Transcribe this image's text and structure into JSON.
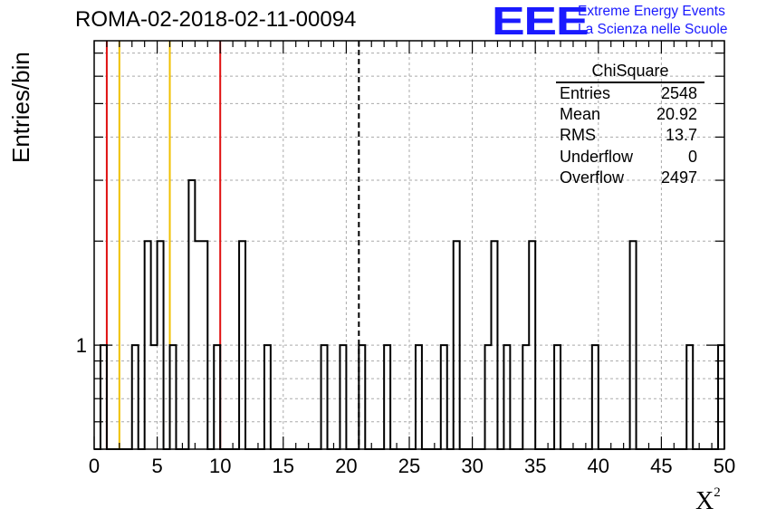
{
  "header": {
    "title": "ROMA-02-2018-02-11-00094",
    "logo_text": "EEE",
    "logo_line1": "Extreme Energy Events",
    "logo_line2": "La Scienza nelle Scuole"
  },
  "colors": {
    "histogram": "#000000",
    "red_line": "#e01010",
    "yellow_line": "#f0c000",
    "grid": "#aaaaaa",
    "logo": "#1a1aff"
  },
  "stats_box": {
    "title": "ChiSquare",
    "rows": [
      {
        "key": "Entries",
        "value": "2548"
      },
      {
        "key": "Mean",
        "value": "20.92"
      },
      {
        "key": "RMS",
        "value": "13.7"
      },
      {
        "key": "Underflow",
        "value": "0"
      },
      {
        "key": "Overflow",
        "value": "2497"
      }
    ]
  },
  "chart_data": {
    "type": "histogram",
    "xlabel_main": "X",
    "xlabel_sup": "2",
    "ylabel": "Entries/bin",
    "xlim": [
      0,
      50
    ],
    "ylog": true,
    "ylim": [
      0.5,
      7.6
    ],
    "x_ticks": [
      "0",
      "5",
      "10",
      "15",
      "20",
      "25",
      "30",
      "35",
      "40",
      "45",
      "50"
    ],
    "y_tick_labels": [
      {
        "value": 1,
        "label": "1"
      }
    ],
    "grid": true,
    "bin_width": 0.5,
    "bins": [
      {
        "x": 0.5,
        "count": 1
      },
      {
        "x": 3.0,
        "count": 1
      },
      {
        "x": 4.0,
        "count": 2
      },
      {
        "x": 4.5,
        "count": 1
      },
      {
        "x": 5.0,
        "count": 2
      },
      {
        "x": 6.0,
        "count": 1
      },
      {
        "x": 7.5,
        "count": 3
      },
      {
        "x": 8.0,
        "count": 2
      },
      {
        "x": 8.5,
        "count": 2
      },
      {
        "x": 9.5,
        "count": 1
      },
      {
        "x": 11.5,
        "count": 2
      },
      {
        "x": 13.5,
        "count": 1
      },
      {
        "x": 18.0,
        "count": 1
      },
      {
        "x": 19.5,
        "count": 1
      },
      {
        "x": 21.0,
        "count": 1
      },
      {
        "x": 23.0,
        "count": 1
      },
      {
        "x": 25.5,
        "count": 1
      },
      {
        "x": 27.5,
        "count": 1
      },
      {
        "x": 28.5,
        "count": 2
      },
      {
        "x": 31.0,
        "count": 1
      },
      {
        "x": 31.5,
        "count": 2
      },
      {
        "x": 32.5,
        "count": 1
      },
      {
        "x": 34.0,
        "count": 1
      },
      {
        "x": 34.5,
        "count": 2
      },
      {
        "x": 36.5,
        "count": 1
      },
      {
        "x": 39.5,
        "count": 1
      },
      {
        "x": 42.5,
        "count": 2
      },
      {
        "x": 47.0,
        "count": 1
      },
      {
        "x": 49.5,
        "count": 1
      }
    ],
    "vertical_lines": [
      {
        "x": 1.0,
        "style": "solid",
        "color": "red"
      },
      {
        "x": 2.0,
        "style": "solid",
        "color": "yellow"
      },
      {
        "x": 6.0,
        "style": "solid",
        "color": "yellow"
      },
      {
        "x": 10.0,
        "style": "solid",
        "color": "red"
      },
      {
        "x": 21.0,
        "style": "dashed",
        "color": "black"
      }
    ]
  }
}
